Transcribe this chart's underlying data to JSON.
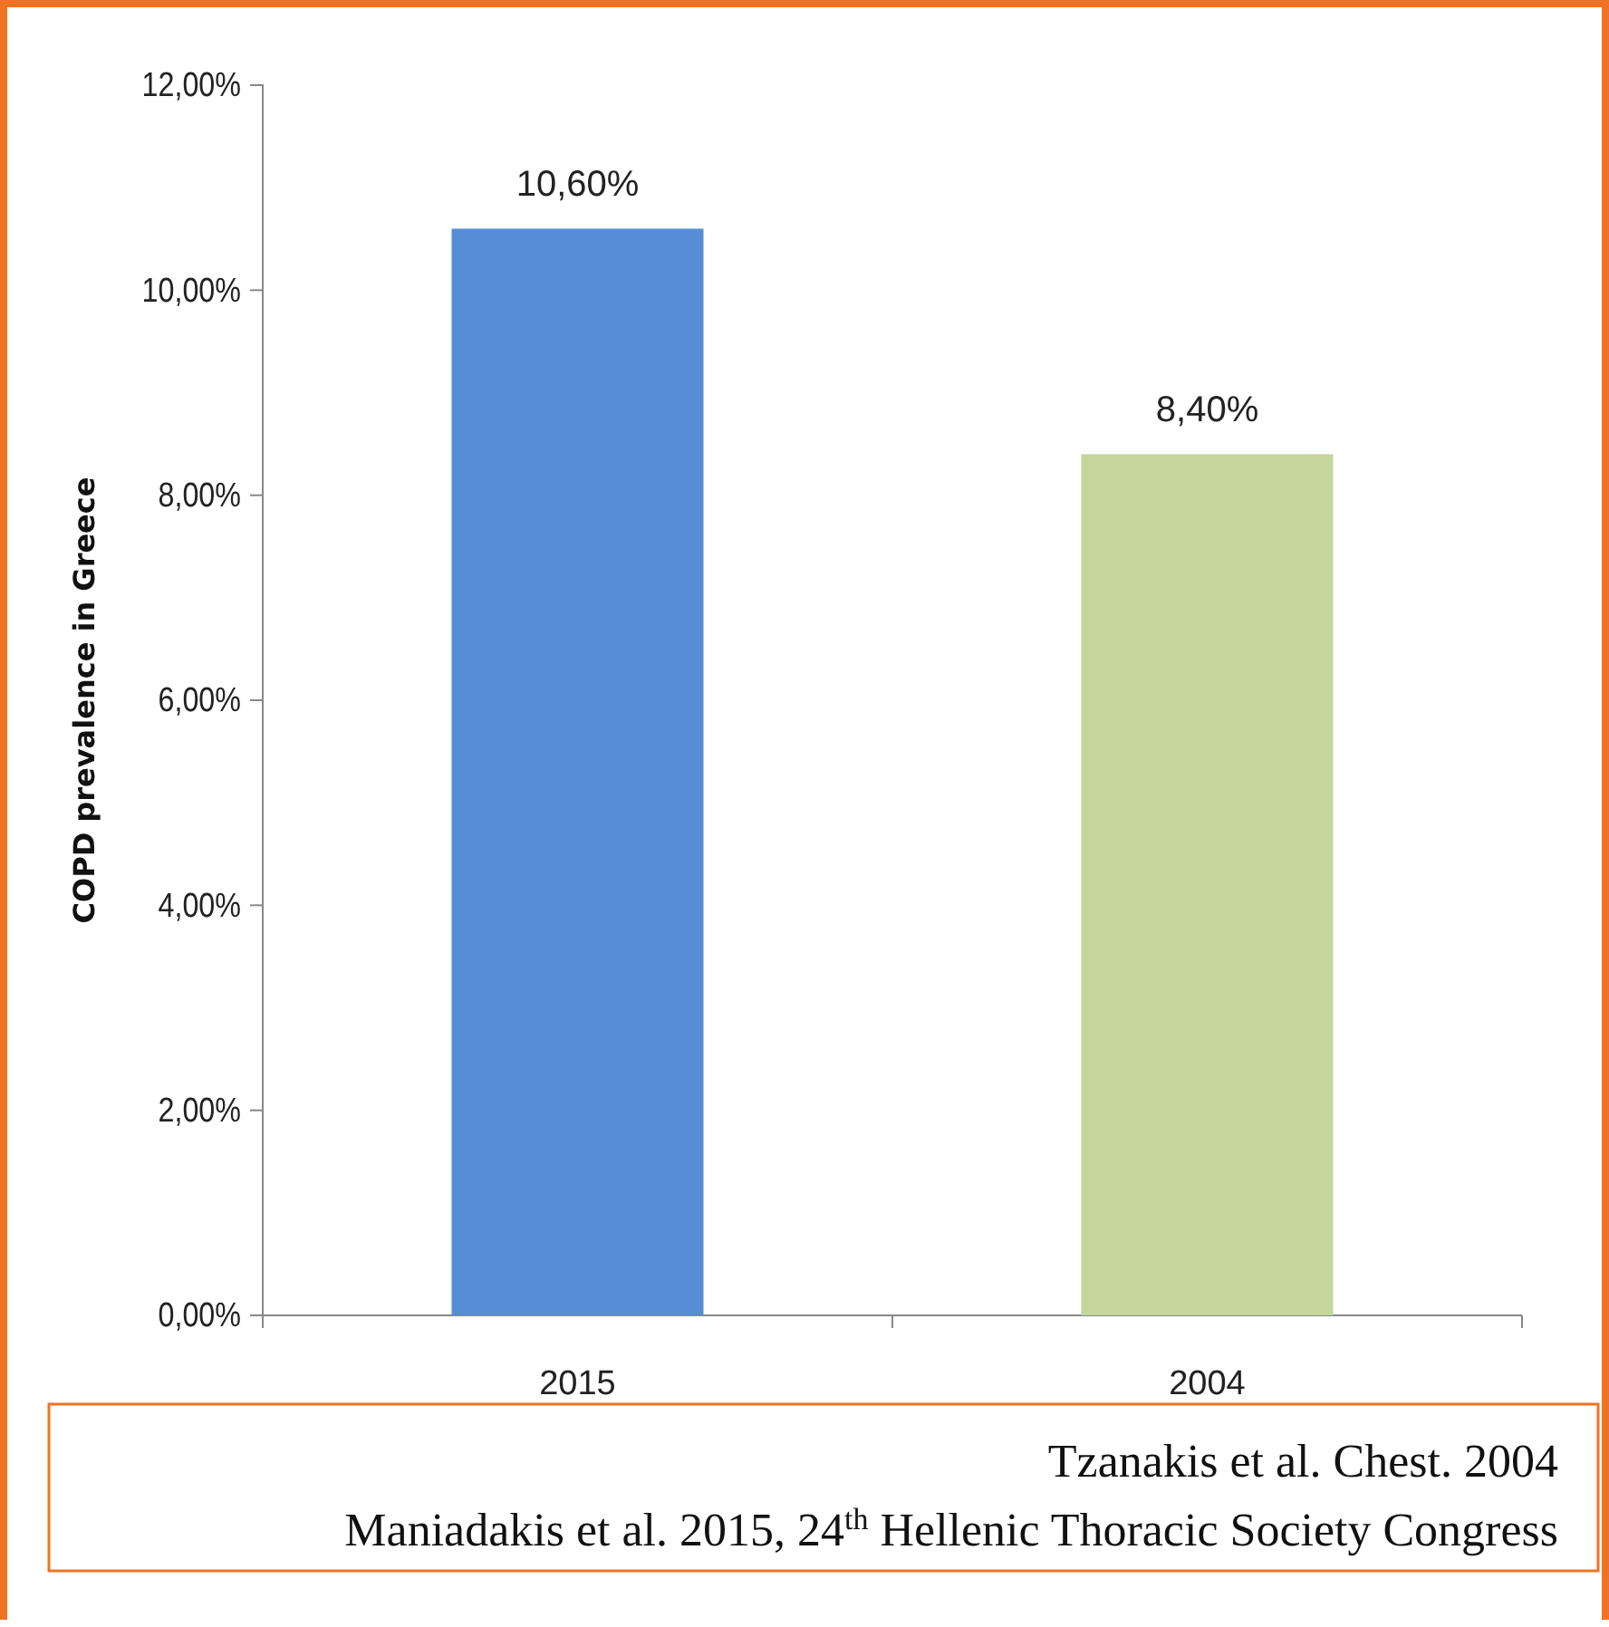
{
  "chart_data": {
    "type": "bar",
    "ylabel": "COPD prevalence in Greece",
    "categories": [
      "2015",
      "2004"
    ],
    "values": [
      10.6,
      8.4
    ],
    "colors": [
      "#558ed5",
      "#c3d69b"
    ],
    "value_labels": [
      "10,60%",
      "8,40%"
    ],
    "ylim": [
      0,
      12
    ],
    "yticks": [
      {
        "value": 0,
        "label": "0,00%"
      },
      {
        "value": 2,
        "label": "2,00%"
      },
      {
        "value": 4,
        "label": "4,00%"
      },
      {
        "value": 6,
        "label": "6,00%"
      },
      {
        "value": 8,
        "label": "8,00%"
      },
      {
        "value": 10,
        "label": "10,00%"
      },
      {
        "value": 12,
        "label": "12,00%"
      }
    ],
    "grid": false,
    "annotations": [
      "Tzanakis et al. Chest. 2004",
      "Maniadakis et al. 2015, 24$^{th}$ Hellenic Thoracic Society Congress"
    ]
  }
}
